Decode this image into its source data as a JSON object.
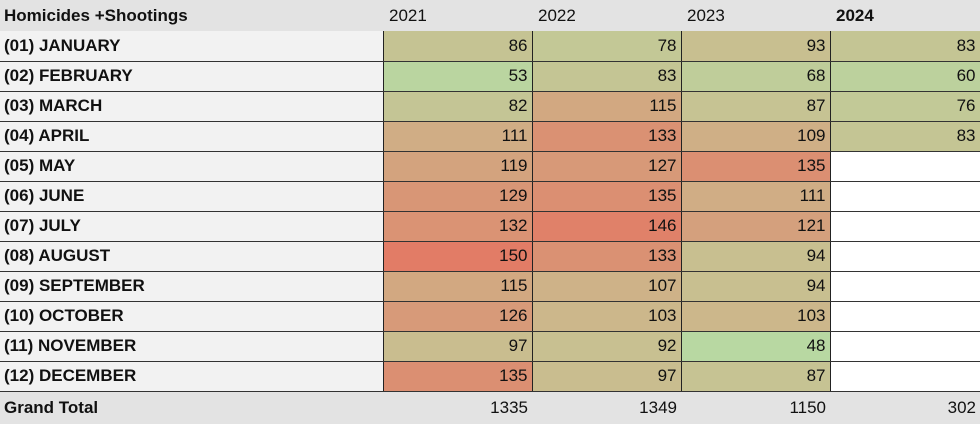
{
  "table": {
    "title": "Homicides +Shootings",
    "years": [
      "2021",
      "2022",
      "2023",
      "2024"
    ],
    "rows": [
      {
        "label": "(01) JANUARY",
        "values": [
          86,
          78,
          93,
          83
        ]
      },
      {
        "label": "(02) FEBRUARY",
        "values": [
          53,
          83,
          68,
          60
        ]
      },
      {
        "label": "(03) MARCH",
        "values": [
          82,
          115,
          87,
          76
        ]
      },
      {
        "label": "(04) APRIL",
        "values": [
          111,
          133,
          109,
          83
        ]
      },
      {
        "label": "(05) MAY",
        "values": [
          119,
          127,
          135,
          null
        ]
      },
      {
        "label": "(06) JUNE",
        "values": [
          129,
          135,
          111,
          null
        ]
      },
      {
        "label": "(07) JULY",
        "values": [
          132,
          146,
          121,
          null
        ]
      },
      {
        "label": "(08) AUGUST",
        "values": [
          150,
          133,
          94,
          null
        ]
      },
      {
        "label": "(09) SEPTEMBER",
        "values": [
          115,
          107,
          94,
          null
        ]
      },
      {
        "label": "(10) OCTOBER",
        "values": [
          126,
          103,
          103,
          null
        ]
      },
      {
        "label": "(11) NOVEMBER",
        "values": [
          97,
          92,
          48,
          null
        ]
      },
      {
        "label": "(12) DECEMBER",
        "values": [
          135,
          97,
          87,
          null
        ]
      }
    ],
    "total": {
      "label": "Grand Total",
      "values": [
        1335,
        1349,
        1150,
        302
      ]
    }
  }
}
